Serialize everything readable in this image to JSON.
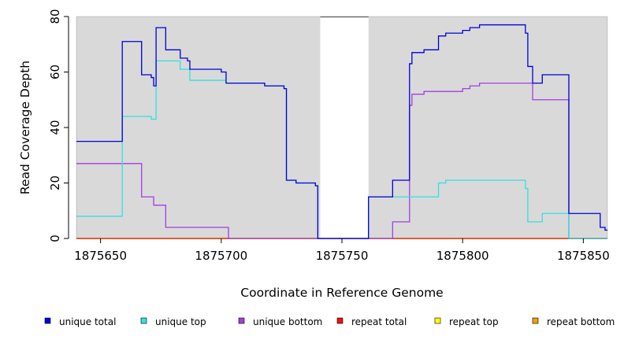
{
  "chart_data": {
    "type": "line",
    "title": "",
    "xlabel": "Coordinate in Reference Genome",
    "ylabel": "Read Coverage Depth",
    "xlim": [
      1875640,
      1875860
    ],
    "ylim": [
      0,
      80
    ],
    "x_ticks": [
      1875650,
      1875700,
      1875750,
      1875800,
      1875850
    ],
    "y_ticks": [
      0,
      20,
      40,
      60,
      80
    ],
    "shaded_regions": [
      [
        1875640,
        1875741
      ],
      [
        1875761,
        1875860
      ]
    ],
    "legend_position": "bottom",
    "series": [
      {
        "name": "unique total",
        "color": "#0000dd",
        "points": [
          [
            1875640,
            35
          ],
          [
            1875659,
            35
          ],
          [
            1875659,
            71
          ],
          [
            1875667,
            71
          ],
          [
            1875667,
            59
          ],
          [
            1875671,
            59
          ],
          [
            1875671,
            58
          ],
          [
            1875672,
            58
          ],
          [
            1875672,
            55
          ],
          [
            1875673,
            55
          ],
          [
            1875673,
            76
          ],
          [
            1875677,
            76
          ],
          [
            1875677,
            68
          ],
          [
            1875683,
            68
          ],
          [
            1875683,
            65
          ],
          [
            1875686,
            65
          ],
          [
            1875686,
            64
          ],
          [
            1875687,
            64
          ],
          [
            1875687,
            61
          ],
          [
            1875700,
            61
          ],
          [
            1875700,
            60
          ],
          [
            1875702,
            60
          ],
          [
            1875702,
            56
          ],
          [
            1875718,
            56
          ],
          [
            1875718,
            55
          ],
          [
            1875726,
            55
          ],
          [
            1875726,
            54
          ],
          [
            1875727,
            54
          ],
          [
            1875727,
            21
          ],
          [
            1875731,
            21
          ],
          [
            1875731,
            20
          ],
          [
            1875739,
            20
          ],
          [
            1875739,
            19
          ],
          [
            1875740,
            19
          ],
          [
            1875740,
            0
          ],
          [
            1875761,
            0
          ],
          [
            1875761,
            15
          ],
          [
            1875771,
            15
          ],
          [
            1875771,
            21
          ],
          [
            1875778,
            21
          ],
          [
            1875778,
            63
          ],
          [
            1875779,
            63
          ],
          [
            1875779,
            67
          ],
          [
            1875784,
            67
          ],
          [
            1875784,
            68
          ],
          [
            1875790,
            68
          ],
          [
            1875790,
            73
          ],
          [
            1875793,
            73
          ],
          [
            1875793,
            74
          ],
          [
            1875800,
            74
          ],
          [
            1875800,
            75
          ],
          [
            1875803,
            75
          ],
          [
            1875803,
            76
          ],
          [
            1875807,
            76
          ],
          [
            1875807,
            77
          ],
          [
            1875826,
            77
          ],
          [
            1875826,
            74
          ],
          [
            1875827,
            74
          ],
          [
            1875827,
            62
          ],
          [
            1875829,
            62
          ],
          [
            1875829,
            56
          ],
          [
            1875833,
            56
          ],
          [
            1875833,
            59
          ],
          [
            1875844,
            59
          ],
          [
            1875844,
            9
          ],
          [
            1875857,
            9
          ],
          [
            1875857,
            4
          ],
          [
            1875859,
            4
          ],
          [
            1875859,
            3
          ],
          [
            1875860,
            3
          ]
        ]
      },
      {
        "name": "unique top",
        "color": "#33e0e0",
        "points": [
          [
            1875640,
            8
          ],
          [
            1875659,
            8
          ],
          [
            1875659,
            44
          ],
          [
            1875671,
            44
          ],
          [
            1875671,
            43
          ],
          [
            1875673,
            43
          ],
          [
            1875673,
            64
          ],
          [
            1875683,
            64
          ],
          [
            1875683,
            61
          ],
          [
            1875687,
            61
          ],
          [
            1875687,
            57
          ],
          [
            1875702,
            57
          ],
          [
            1875702,
            56
          ],
          [
            1875718,
            56
          ],
          [
            1875718,
            55
          ],
          [
            1875726,
            55
          ],
          [
            1875726,
            54
          ],
          [
            1875727,
            54
          ],
          [
            1875727,
            21
          ],
          [
            1875731,
            21
          ],
          [
            1875731,
            20
          ],
          [
            1875739,
            20
          ],
          [
            1875739,
            19
          ],
          [
            1875740,
            19
          ],
          [
            1875740,
            0
          ],
          [
            1875761,
            0
          ],
          [
            1875761,
            15
          ],
          [
            1875790,
            15
          ],
          [
            1875790,
            20
          ],
          [
            1875793,
            20
          ],
          [
            1875793,
            21
          ],
          [
            1875826,
            21
          ],
          [
            1875826,
            18
          ],
          [
            1875827,
            18
          ],
          [
            1875827,
            6
          ],
          [
            1875833,
            6
          ],
          [
            1875833,
            9
          ],
          [
            1875844,
            9
          ],
          [
            1875844,
            0
          ],
          [
            1875860,
            0
          ]
        ]
      },
      {
        "name": "unique bottom",
        "color": "#a040e0",
        "points": [
          [
            1875640,
            27
          ],
          [
            1875667,
            27
          ],
          [
            1875667,
            15
          ],
          [
            1875672,
            15
          ],
          [
            1875672,
            12
          ],
          [
            1875677,
            12
          ],
          [
            1875677,
            4
          ],
          [
            1875703,
            4
          ],
          [
            1875703,
            0
          ],
          [
            1875771,
            0
          ],
          [
            1875771,
            6
          ],
          [
            1875778,
            6
          ],
          [
            1875778,
            48
          ],
          [
            1875779,
            48
          ],
          [
            1875779,
            52
          ],
          [
            1875784,
            52
          ],
          [
            1875784,
            53
          ],
          [
            1875800,
            53
          ],
          [
            1875800,
            54
          ],
          [
            1875803,
            54
          ],
          [
            1875803,
            55
          ],
          [
            1875807,
            55
          ],
          [
            1875807,
            56
          ],
          [
            1875829,
            56
          ],
          [
            1875829,
            50
          ],
          [
            1875844,
            50
          ],
          [
            1875844,
            0
          ],
          [
            1875860,
            0
          ]
        ]
      },
      {
        "name": "repeat total",
        "color": "#ee1111",
        "points": [
          [
            1875640,
            0
          ],
          [
            1875860,
            0
          ]
        ]
      },
      {
        "name": "repeat top",
        "color": "#ffff00",
        "points": [
          [
            1875640,
            0
          ],
          [
            1875860,
            0
          ]
        ]
      },
      {
        "name": "repeat bottom",
        "color": "#f0a000",
        "points": [
          [
            1875640,
            0
          ],
          [
            1875860,
            0
          ]
        ]
      }
    ]
  }
}
